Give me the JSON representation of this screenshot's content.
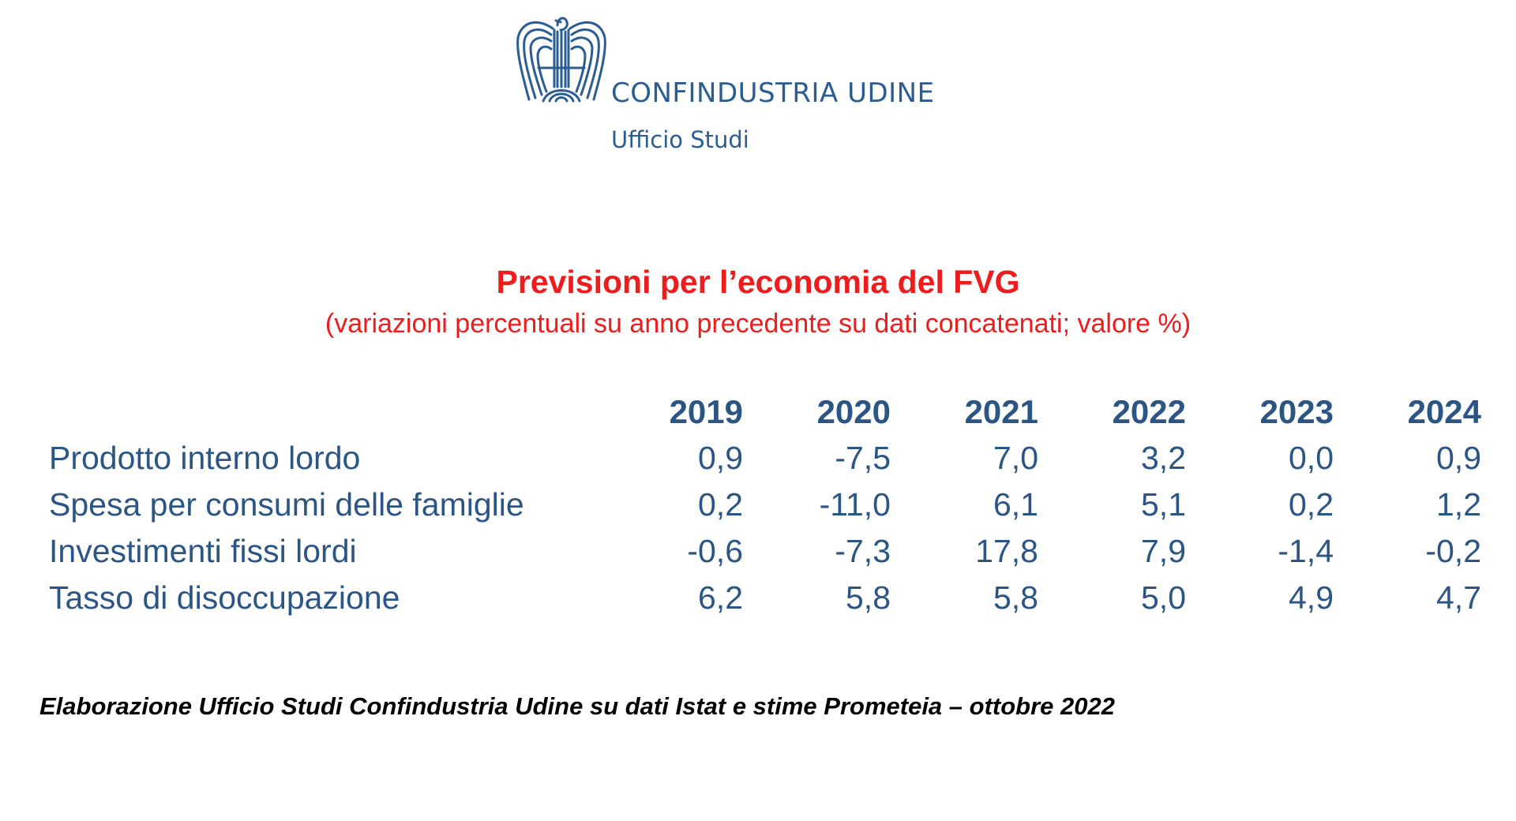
{
  "logo": {
    "name": "CONFINDUSTRIA UDINE",
    "subtitle": "Ufficio Studi",
    "color": "#2b5d92"
  },
  "title": "Previsioni per l’economia del FVG",
  "subtitle": "(variazioni percentuali su anno precedente su dati concatenati; valore %)",
  "table": {
    "years": [
      "2019",
      "2020",
      "2021",
      "2022",
      "2023",
      "2024"
    ],
    "rows": [
      {
        "label": "Prodotto interno lordo",
        "values": [
          "0,9",
          "-7,5",
          "7,0",
          "3,2",
          "0,0",
          "0,9"
        ]
      },
      {
        "label": "Spesa per consumi delle famiglie",
        "values": [
          "0,2",
          "-11,0",
          "6,1",
          "5,1",
          "0,2",
          "1,2"
        ]
      },
      {
        "label": "Investimenti fissi lordi",
        "values": [
          "-0,6",
          "-7,3",
          "17,8",
          "7,9",
          "-1,4",
          "-0,2"
        ]
      },
      {
        "label": "Tasso di disoccupazione",
        "values": [
          "6,2",
          "5,8",
          "5,8",
          "5,0",
          "4,9",
          "4,7"
        ]
      }
    ]
  },
  "footer": "Elaborazione Ufficio Studi Confindustria Udine su dati Istat e stime Prometeia – ottobre 2022",
  "colors": {
    "title": "#ee1c1c",
    "table_text": "#2b5584",
    "footer": "#000000"
  }
}
